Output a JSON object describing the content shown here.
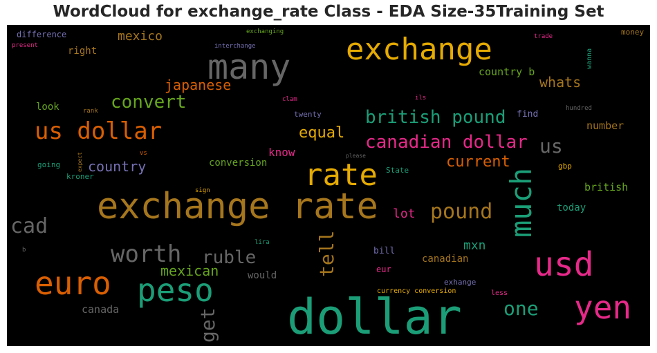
{
  "chart_data": {
    "type": "wordcloud",
    "title": "WordCloud for exchange_rate Class - EDA Size-35Training Set",
    "background": "#000000",
    "words": [
      {
        "text": "dollar",
        "color": "#1b9e77"
      },
      {
        "text": "exchange rate",
        "color": "#a6761d"
      },
      {
        "text": "many",
        "color": "#666666"
      },
      {
        "text": "exchange",
        "color": "#e6ab02"
      },
      {
        "text": "usd",
        "color": "#e7298a"
      },
      {
        "text": "yen",
        "color": "#e7298a"
      },
      {
        "text": "euro",
        "color": "#d95f02"
      },
      {
        "text": "peso",
        "color": "#1b9e77"
      },
      {
        "text": "rate",
        "color": "#e6ab02"
      },
      {
        "text": "much",
        "color": "#1b9e77"
      },
      {
        "text": "us dollar",
        "color": "#d95f02"
      },
      {
        "text": "worth",
        "color": "#666666"
      },
      {
        "text": "cad",
        "color": "#666666"
      },
      {
        "text": "pound",
        "color": "#a6761d"
      },
      {
        "text": "canadian dollar",
        "color": "#e7298a"
      },
      {
        "text": "british pound",
        "color": "#1b9e77"
      },
      {
        "text": "tell",
        "color": "#a6761d"
      },
      {
        "text": "convert",
        "color": "#66a61e"
      },
      {
        "text": "get",
        "color": "#666666"
      },
      {
        "text": "ruble",
        "color": "#666666"
      },
      {
        "text": "one",
        "color": "#1b9e77"
      },
      {
        "text": "us",
        "color": "#666666"
      },
      {
        "text": "equal",
        "color": "#e6ab02"
      },
      {
        "text": "current",
        "color": "#d95f02"
      },
      {
        "text": "country",
        "color": "#7570b3"
      },
      {
        "text": "whats",
        "color": "#a6761d"
      },
      {
        "text": "japanese",
        "color": "#d95f02"
      },
      {
        "text": "mexican",
        "color": "#66a61e"
      },
      {
        "text": "mexico",
        "color": "#a6761d"
      },
      {
        "text": "mxn",
        "color": "#1b9e77"
      },
      {
        "text": "lot",
        "color": "#e7298a"
      },
      {
        "text": "know",
        "color": "#e7298a"
      },
      {
        "text": "country b",
        "color": "#66a61e"
      },
      {
        "text": "british",
        "color": "#66a61e"
      },
      {
        "text": "number",
        "color": "#a6761d"
      },
      {
        "text": "canada",
        "color": "#666666"
      },
      {
        "text": "conversion",
        "color": "#66a61e"
      },
      {
        "text": "today",
        "color": "#1b9e77"
      },
      {
        "text": "canadian",
        "color": "#a6761d"
      },
      {
        "text": "would",
        "color": "#666666"
      },
      {
        "text": "right",
        "color": "#a6761d"
      },
      {
        "text": "look",
        "color": "#66a61e"
      },
      {
        "text": "bill",
        "color": "#7570b3"
      },
      {
        "text": "find",
        "color": "#7570b3"
      },
      {
        "text": "difference",
        "color": "#7570b3"
      },
      {
        "text": "money",
        "color": "#a6761d"
      },
      {
        "text": "eur",
        "color": "#e7298a"
      },
      {
        "text": "exhange",
        "color": "#7570b3"
      },
      {
        "text": "kroner",
        "color": "#1b9e77"
      },
      {
        "text": "going",
        "color": "#1b9e77"
      },
      {
        "text": "twenty",
        "color": "#7570b3"
      },
      {
        "text": "gbp",
        "color": "#e6ab02"
      },
      {
        "text": "wanna",
        "color": "#1b9e77"
      },
      {
        "text": "State",
        "color": "#1b9e77"
      },
      {
        "text": "currency conversion",
        "color": "#e6ab02"
      },
      {
        "text": "less",
        "color": "#e7298a"
      },
      {
        "text": "hundred",
        "color": "#666666"
      },
      {
        "text": "exchanging",
        "color": "#66a61e"
      },
      {
        "text": "interchange",
        "color": "#7570b3"
      },
      {
        "text": "trade",
        "color": "#e7298a"
      },
      {
        "text": "present",
        "color": "#e7298a"
      },
      {
        "text": "rank",
        "color": "#a6761d"
      },
      {
        "text": "clam",
        "color": "#e7298a"
      },
      {
        "text": "ils",
        "color": "#e7298a"
      },
      {
        "text": "please",
        "color": "#666666"
      },
      {
        "text": "expect",
        "color": "#a6761d"
      },
      {
        "text": "vs",
        "color": "#d95f02"
      },
      {
        "text": "sign",
        "color": "#e6ab02"
      },
      {
        "text": "lira",
        "color": "#1b9e77"
      },
      {
        "text": "b",
        "color": "#666666"
      }
    ]
  }
}
